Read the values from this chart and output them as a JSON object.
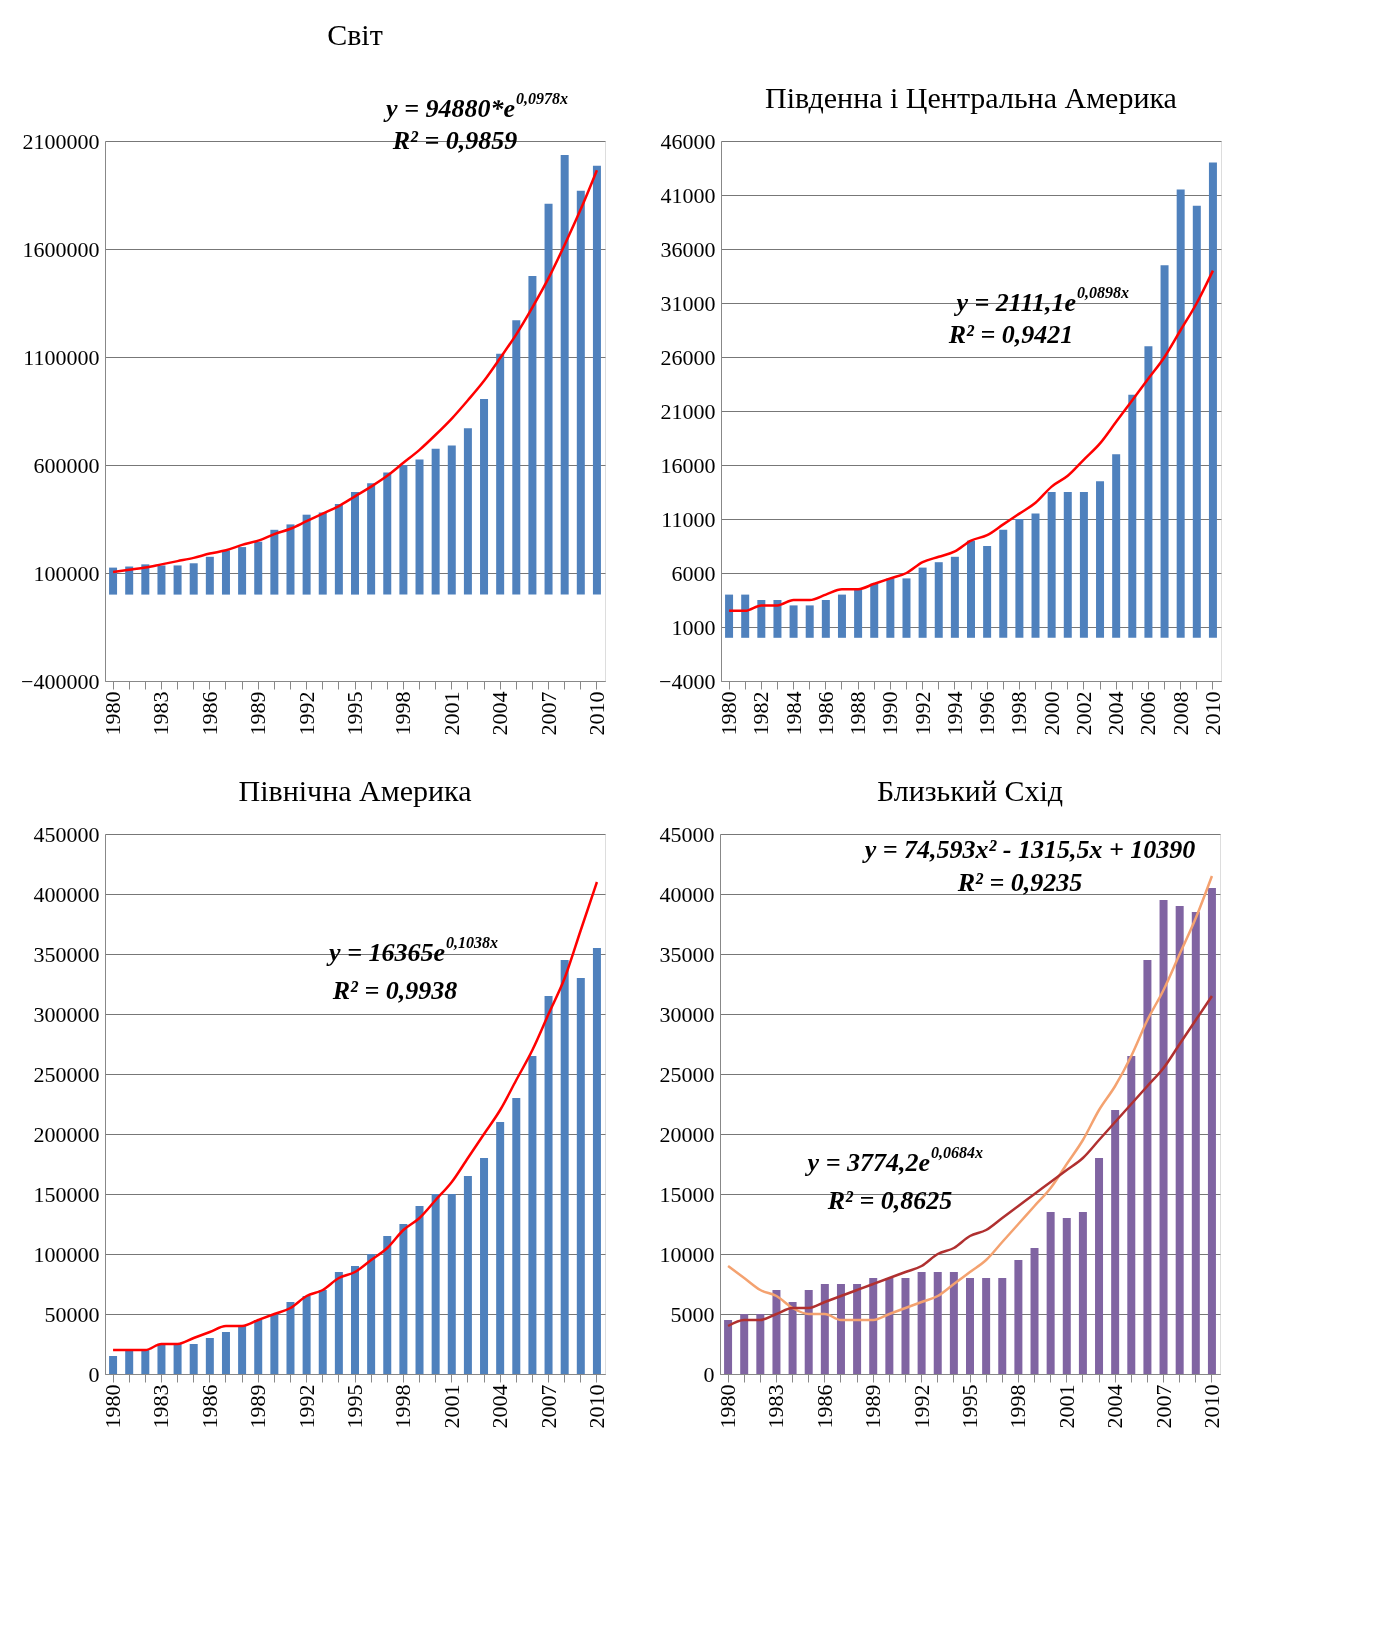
{
  "chart_data": [
    {
      "type": "bar",
      "title": "Світ",
      "categories": [
        "1980",
        null,
        null,
        "1983",
        null,
        null,
        "1986",
        null,
        null,
        "1989",
        null,
        null,
        "1992",
        null,
        null,
        "1995",
        null,
        null,
        "1998",
        null,
        null,
        "2001",
        null,
        null,
        "2004",
        null,
        null,
        "2007",
        null,
        null,
        "2010"
      ],
      "series": [
        {
          "color": "#4f81bd",
          "values": [
            125000,
            130000,
            140000,
            135000,
            135000,
            145000,
            175000,
            205000,
            220000,
            245000,
            300000,
            325000,
            370000,
            380000,
            420000,
            475000,
            515000,
            565000,
            600000,
            625000,
            675000,
            690000,
            770000,
            905000,
            1115000,
            1270000,
            1475000,
            1810000,
            2035000,
            1870000,
            1985000
          ]
        },
        {
          "type": "line",
          "color": "#ff0000",
          "values": [
            105000,
            115000,
            125000,
            140000,
            155000,
            170000,
            190000,
            205000,
            230000,
            250000,
            280000,
            305000,
            340000,
            375000,
            410000,
            455000,
            500000,
            550000,
            610000,
            670000,
            740000,
            815000,
            900000,
            990000,
            1095000,
            1205000,
            1330000,
            1465000,
            1620000,
            1785000,
            1965000
          ]
        }
      ],
      "ylim": [
        -400000,
        2100000
      ],
      "yticks": [
        -400000,
        100000,
        600000,
        1100000,
        1600000,
        2100000
      ],
      "grid": "y",
      "annotations": [
        "y = 94880*e$^{0,0978x}$",
        "R² = 0,9859"
      ]
    },
    {
      "type": "bar",
      "title": "Південна і Центральна Америка",
      "categories": [
        "1980",
        null,
        "1982",
        null,
        "1984",
        null,
        "1986",
        null,
        "1988",
        null,
        "1990",
        null,
        "1992",
        null,
        "1994",
        null,
        "1996",
        null,
        "1998",
        null,
        "2000",
        null,
        "2002",
        null,
        "2004",
        null,
        "2006",
        null,
        "2008",
        null,
        "2010"
      ],
      "series": [
        {
          "color": "#4f81bd",
          "values": [
            4000,
            4000,
            3500,
            3500,
            3000,
            3000,
            3500,
            4000,
            4500,
            5000,
            5500,
            5500,
            6500,
            7000,
            7500,
            9000,
            8500,
            10000,
            11000,
            11500,
            13500,
            13500,
            13500,
            14500,
            17000,
            22500,
            27000,
            34500,
            41500,
            40000,
            44000
          ]
        },
        {
          "type": "line",
          "color": "#ff0000",
          "values": [
            2500,
            2500,
            3000,
            3000,
            3500,
            3500,
            4000,
            4500,
            4500,
            5000,
            5500,
            6000,
            7000,
            7500,
            8000,
            9000,
            9500,
            10500,
            11500,
            12500,
            14000,
            15000,
            16500,
            18000,
            20000,
            22000,
            24000,
            26000,
            28500,
            31000,
            34000
          ]
        }
      ],
      "ylim": [
        -4000,
        46000
      ],
      "yticks": [
        -4000,
        1000,
        6000,
        11000,
        16000,
        21000,
        26000,
        31000,
        36000,
        41000,
        46000
      ],
      "grid": "y",
      "annotations": [
        "y = 2111,1e$^{0,0898x}$",
        "R² = 0,9421"
      ]
    },
    {
      "type": "bar",
      "title": "Північна Америка",
      "categories": [
        "1980",
        null,
        null,
        "1983",
        null,
        null,
        "1986",
        null,
        null,
        "1989",
        null,
        null,
        "1992",
        null,
        null,
        "1995",
        null,
        null,
        "1998",
        null,
        null,
        "2001",
        null,
        null,
        "2004",
        null,
        null,
        "2007",
        null,
        null,
        "2010"
      ],
      "series": [
        {
          "color": "#4f81bd",
          "values": [
            15000,
            20000,
            20000,
            25000,
            25000,
            25000,
            30000,
            35000,
            40000,
            45000,
            50000,
            60000,
            65000,
            70000,
            85000,
            90000,
            100000,
            115000,
            125000,
            140000,
            150000,
            150000,
            165000,
            180000,
            210000,
            230000,
            265000,
            315000,
            345000,
            330000,
            355000
          ]
        },
        {
          "type": "line",
          "color": "#ff0000",
          "values": [
            20000,
            20000,
            20000,
            25000,
            25000,
            30000,
            35000,
            40000,
            40000,
            45000,
            50000,
            55000,
            65000,
            70000,
            80000,
            85000,
            95000,
            105000,
            120000,
            130000,
            145000,
            160000,
            180000,
            200000,
            220000,
            245000,
            270000,
            300000,
            330000,
            370000,
            410000
          ]
        }
      ],
      "ylim": [
        0,
        450000
      ],
      "yticks": [
        0,
        50000,
        100000,
        150000,
        200000,
        250000,
        300000,
        350000,
        400000,
        450000
      ],
      "grid": "y",
      "annotations": [
        "y = 16365e$^{0,1038x}$",
        "R² = 0,9938"
      ]
    },
    {
      "type": "bar",
      "title": "Близький Схід",
      "categories": [
        "1980",
        null,
        null,
        "1983",
        null,
        null,
        "1986",
        null,
        null,
        "1989",
        null,
        null,
        "1992",
        null,
        null,
        "1995",
        null,
        null,
        "1998",
        null,
        null,
        "2001",
        null,
        null,
        "2004",
        null,
        null,
        "2007",
        null,
        null,
        "2010"
      ],
      "series": [
        {
          "color": "#8064a2",
          "values": [
            4500,
            5000,
            5000,
            7000,
            6000,
            7000,
            7500,
            7500,
            7500,
            8000,
            8000,
            8000,
            8500,
            8500,
            8500,
            8000,
            8000,
            8000,
            9500,
            10500,
            13500,
            13000,
            13500,
            18000,
            22000,
            26500,
            34500,
            39500,
            39000,
            38500,
            40500
          ]
        },
        {
          "type": "line",
          "color": "#f4a270",
          "values": [
            9000,
            8000,
            7000,
            6500,
            5500,
            5000,
            5000,
            4500,
            4500,
            4500,
            5000,
            5500,
            6000,
            6500,
            7500,
            8500,
            9500,
            11000,
            12500,
            14000,
            15500,
            17500,
            19500,
            22000,
            24000,
            26500,
            29500,
            32000,
            35000,
            38000,
            41500
          ]
        },
        {
          "type": "line",
          "color": "#b03030",
          "values": [
            4000,
            4500,
            4500,
            5000,
            5500,
            5500,
            6000,
            6500,
            7000,
            7500,
            8000,
            8500,
            9000,
            10000,
            10500,
            11500,
            12000,
            13000,
            14000,
            15000,
            16000,
            17000,
            18000,
            19500,
            21000,
            22500,
            24000,
            25500,
            27500,
            29500,
            31500
          ]
        }
      ],
      "ylim": [
        0,
        45000
      ],
      "yticks": [
        0,
        5000,
        10000,
        15000,
        20000,
        25000,
        30000,
        35000,
        40000,
        45000
      ],
      "grid": "y",
      "annotations": [
        "y = 74,593x² - 1315,5x + 10390",
        "R² = 0,9235",
        "y = 3774,2e$^{0,0684x}$",
        "R² = 0,8625"
      ]
    }
  ]
}
